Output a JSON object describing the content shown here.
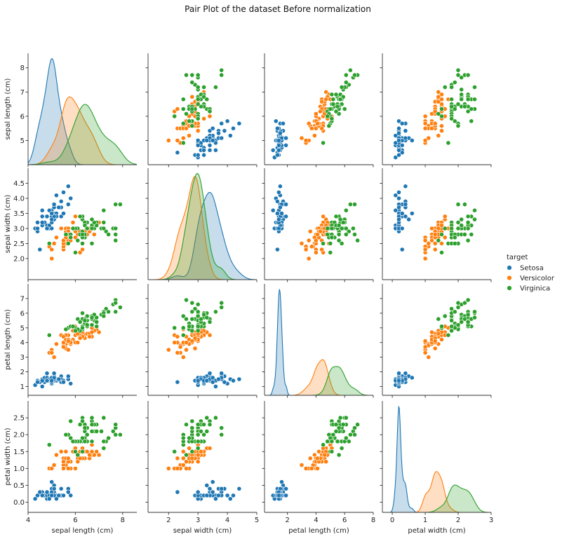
{
  "chart_data": {
    "type": "scatter",
    "title": "Pair Plot of the dataset Before normalization",
    "variables": [
      {
        "label": "sepal length (cm)",
        "range": [
          4.0,
          8.6
        ],
        "ticks": [
          4,
          6,
          8
        ],
        "yticks": [
          5,
          6,
          7,
          8
        ],
        "ytick_labels": [
          "5",
          "6",
          "7",
          "8"
        ]
      },
      {
        "label": "sepal width (cm)",
        "range": [
          1.3,
          5.0
        ],
        "ticks": [
          2,
          3,
          4,
          5
        ],
        "yticks": [
          2.0,
          2.5,
          3.0,
          3.5,
          4.0,
          4.5
        ],
        "ytick_labels": [
          "2.0",
          "2.5",
          "3.0",
          "3.5",
          "4.0",
          "4.5"
        ]
      },
      {
        "label": "petal length (cm)",
        "range": [
          0.4,
          8.0
        ],
        "ticks": [
          2,
          4,
          6,
          8
        ],
        "yticks": [
          1,
          2,
          3,
          4,
          5,
          6,
          7
        ],
        "ytick_labels": [
          "1",
          "2",
          "3",
          "4",
          "5",
          "6",
          "7"
        ]
      },
      {
        "label": "petal width (cm)",
        "range": [
          -0.3,
          3.0
        ],
        "ticks": [
          0,
          1,
          2,
          3
        ],
        "yticks": [
          0.0,
          0.5,
          1.0,
          1.5,
          2.0,
          2.5
        ],
        "ytick_labels": [
          "0.0",
          "0.5",
          "1.0",
          "1.5",
          "2.0",
          "2.5"
        ]
      }
    ],
    "legend": {
      "title": "target",
      "placement": "right"
    },
    "series": [
      {
        "name": "Setosa",
        "color": "#1f77b4",
        "points": [
          [
            5.1,
            3.5,
            1.4,
            0.2
          ],
          [
            4.9,
            3.0,
            1.4,
            0.2
          ],
          [
            4.7,
            3.2,
            1.3,
            0.2
          ],
          [
            4.6,
            3.1,
            1.5,
            0.2
          ],
          [
            5.0,
            3.6,
            1.4,
            0.2
          ],
          [
            5.4,
            3.9,
            1.7,
            0.4
          ],
          [
            4.6,
            3.4,
            1.4,
            0.3
          ],
          [
            5.0,
            3.4,
            1.5,
            0.2
          ],
          [
            4.4,
            2.9,
            1.4,
            0.2
          ],
          [
            4.9,
            3.1,
            1.5,
            0.1
          ],
          [
            5.4,
            3.7,
            1.5,
            0.2
          ],
          [
            4.8,
            3.4,
            1.6,
            0.2
          ],
          [
            4.8,
            3.0,
            1.4,
            0.1
          ],
          [
            4.3,
            3.0,
            1.1,
            0.1
          ],
          [
            5.8,
            4.0,
            1.2,
            0.2
          ],
          [
            5.7,
            4.4,
            1.5,
            0.4
          ],
          [
            5.4,
            3.9,
            1.3,
            0.4
          ],
          [
            5.1,
            3.5,
            1.4,
            0.3
          ],
          [
            5.7,
            3.8,
            1.7,
            0.3
          ],
          [
            5.1,
            3.8,
            1.5,
            0.3
          ],
          [
            5.4,
            3.4,
            1.7,
            0.2
          ],
          [
            5.1,
            3.7,
            1.5,
            0.4
          ],
          [
            4.6,
            3.6,
            1.0,
            0.2
          ],
          [
            5.1,
            3.3,
            1.7,
            0.5
          ],
          [
            4.8,
            3.4,
            1.9,
            0.2
          ],
          [
            5.0,
            3.0,
            1.6,
            0.2
          ],
          [
            5.0,
            3.4,
            1.6,
            0.4
          ],
          [
            5.2,
            3.5,
            1.5,
            0.2
          ],
          [
            5.2,
            3.4,
            1.4,
            0.2
          ],
          [
            4.7,
            3.2,
            1.6,
            0.2
          ],
          [
            4.8,
            3.1,
            1.6,
            0.2
          ],
          [
            5.4,
            3.4,
            1.5,
            0.4
          ],
          [
            5.2,
            4.1,
            1.5,
            0.1
          ],
          [
            5.5,
            4.2,
            1.4,
            0.2
          ],
          [
            4.9,
            3.1,
            1.5,
            0.2
          ],
          [
            5.0,
            3.2,
            1.2,
            0.2
          ],
          [
            5.5,
            3.5,
            1.3,
            0.2
          ],
          [
            4.9,
            3.6,
            1.4,
            0.1
          ],
          [
            4.4,
            3.0,
            1.3,
            0.2
          ],
          [
            5.1,
            3.4,
            1.5,
            0.2
          ],
          [
            5.0,
            3.5,
            1.3,
            0.3
          ],
          [
            4.5,
            2.3,
            1.3,
            0.3
          ],
          [
            4.4,
            3.2,
            1.3,
            0.2
          ],
          [
            5.0,
            3.5,
            1.6,
            0.6
          ],
          [
            5.1,
            3.8,
            1.9,
            0.4
          ],
          [
            4.8,
            3.0,
            1.4,
            0.3
          ],
          [
            5.1,
            3.8,
            1.6,
            0.2
          ],
          [
            4.6,
            3.2,
            1.4,
            0.2
          ],
          [
            5.3,
            3.7,
            1.5,
            0.2
          ],
          [
            5.0,
            3.3,
            1.4,
            0.2
          ]
        ]
      },
      {
        "name": "Versicolor",
        "color": "#ff7f0e",
        "points": [
          [
            7.0,
            3.2,
            4.7,
            1.4
          ],
          [
            6.4,
            3.2,
            4.5,
            1.5
          ],
          [
            6.9,
            3.1,
            4.9,
            1.5
          ],
          [
            5.5,
            2.3,
            4.0,
            1.3
          ],
          [
            6.5,
            2.8,
            4.6,
            1.5
          ],
          [
            5.7,
            2.8,
            4.5,
            1.3
          ],
          [
            6.3,
            3.3,
            4.7,
            1.6
          ],
          [
            4.9,
            2.4,
            3.3,
            1.0
          ],
          [
            6.6,
            2.9,
            4.6,
            1.3
          ],
          [
            5.2,
            2.7,
            3.9,
            1.4
          ],
          [
            5.0,
            2.0,
            3.5,
            1.0
          ],
          [
            5.9,
            3.0,
            4.2,
            1.5
          ],
          [
            6.0,
            2.2,
            4.0,
            1.0
          ],
          [
            6.1,
            2.9,
            4.7,
            1.4
          ],
          [
            5.6,
            2.9,
            3.6,
            1.3
          ],
          [
            6.7,
            3.1,
            4.4,
            1.4
          ],
          [
            5.6,
            3.0,
            4.5,
            1.5
          ],
          [
            5.8,
            2.7,
            4.1,
            1.0
          ],
          [
            6.2,
            2.2,
            4.5,
            1.5
          ],
          [
            5.6,
            2.5,
            3.9,
            1.1
          ],
          [
            5.9,
            3.2,
            4.8,
            1.8
          ],
          [
            6.1,
            2.8,
            4.0,
            1.3
          ],
          [
            6.3,
            2.5,
            4.9,
            1.5
          ],
          [
            6.1,
            2.8,
            4.7,
            1.2
          ],
          [
            6.4,
            2.9,
            4.3,
            1.3
          ],
          [
            6.6,
            3.0,
            4.4,
            1.4
          ],
          [
            6.8,
            2.8,
            4.8,
            1.4
          ],
          [
            6.7,
            3.0,
            5.0,
            1.7
          ],
          [
            6.0,
            2.9,
            4.5,
            1.5
          ],
          [
            5.7,
            2.6,
            3.5,
            1.0
          ],
          [
            5.5,
            2.4,
            3.8,
            1.1
          ],
          [
            5.5,
            2.4,
            3.7,
            1.0
          ],
          [
            5.8,
            2.7,
            3.9,
            1.2
          ],
          [
            6.0,
            2.7,
            5.1,
            1.6
          ],
          [
            5.4,
            3.0,
            4.5,
            1.5
          ],
          [
            6.0,
            3.4,
            4.5,
            1.6
          ],
          [
            6.7,
            3.1,
            4.7,
            1.5
          ],
          [
            6.3,
            2.3,
            4.4,
            1.3
          ],
          [
            5.6,
            3.0,
            4.1,
            1.3
          ],
          [
            5.5,
            2.5,
            4.0,
            1.3
          ],
          [
            5.5,
            2.6,
            4.4,
            1.2
          ],
          [
            6.1,
            3.0,
            4.6,
            1.4
          ],
          [
            5.8,
            2.6,
            4.0,
            1.2
          ],
          [
            5.0,
            2.3,
            3.3,
            1.0
          ],
          [
            5.6,
            2.7,
            4.2,
            1.3
          ],
          [
            5.7,
            3.0,
            4.2,
            1.2
          ],
          [
            5.7,
            2.9,
            4.2,
            1.3
          ],
          [
            6.2,
            2.9,
            4.3,
            1.3
          ],
          [
            5.1,
            2.5,
            3.0,
            1.1
          ],
          [
            5.7,
            2.8,
            4.1,
            1.3
          ]
        ]
      },
      {
        "name": "Virginica",
        "color": "#2ca02c",
        "points": [
          [
            6.3,
            3.3,
            6.0,
            2.5
          ],
          [
            5.8,
            2.7,
            5.1,
            1.9
          ],
          [
            7.1,
            3.0,
            5.9,
            2.1
          ],
          [
            6.3,
            2.9,
            5.6,
            1.8
          ],
          [
            6.5,
            3.0,
            5.8,
            2.2
          ],
          [
            7.6,
            3.0,
            6.6,
            2.1
          ],
          [
            4.9,
            2.5,
            4.5,
            1.7
          ],
          [
            7.3,
            2.9,
            6.3,
            1.8
          ],
          [
            6.7,
            2.5,
            5.8,
            1.8
          ],
          [
            7.2,
            3.6,
            6.1,
            2.5
          ],
          [
            6.5,
            3.2,
            5.1,
            2.0
          ],
          [
            6.4,
            2.7,
            5.3,
            1.9
          ],
          [
            6.8,
            3.0,
            5.5,
            2.1
          ],
          [
            5.7,
            2.5,
            5.0,
            2.0
          ],
          [
            5.8,
            2.8,
            5.1,
            2.4
          ],
          [
            6.4,
            3.2,
            5.3,
            2.3
          ],
          [
            6.5,
            3.0,
            5.5,
            1.8
          ],
          [
            7.7,
            3.8,
            6.7,
            2.2
          ],
          [
            7.7,
            2.6,
            6.9,
            2.3
          ],
          [
            6.0,
            2.2,
            5.0,
            1.5
          ],
          [
            6.9,
            3.2,
            5.7,
            2.3
          ],
          [
            5.6,
            2.8,
            4.9,
            2.0
          ],
          [
            7.7,
            2.8,
            6.7,
            2.0
          ],
          [
            6.3,
            2.7,
            4.9,
            1.8
          ],
          [
            6.7,
            3.3,
            5.7,
            2.1
          ],
          [
            7.2,
            3.2,
            6.0,
            1.8
          ],
          [
            6.2,
            2.8,
            4.8,
            1.8
          ],
          [
            6.1,
            3.0,
            4.9,
            1.8
          ],
          [
            6.4,
            2.8,
            5.6,
            2.1
          ],
          [
            7.2,
            3.0,
            5.8,
            1.6
          ],
          [
            7.4,
            2.8,
            6.1,
            1.9
          ],
          [
            7.9,
            3.8,
            6.4,
            2.0
          ],
          [
            6.4,
            2.8,
            5.6,
            2.2
          ],
          [
            6.3,
            2.8,
            5.1,
            1.5
          ],
          [
            6.1,
            2.6,
            5.6,
            1.4
          ],
          [
            7.7,
            3.0,
            6.1,
            2.3
          ],
          [
            6.3,
            3.4,
            5.6,
            2.4
          ],
          [
            6.4,
            3.1,
            5.5,
            1.8
          ],
          [
            6.0,
            3.0,
            4.8,
            1.8
          ],
          [
            6.9,
            3.1,
            5.4,
            2.1
          ],
          [
            6.7,
            3.1,
            5.6,
            2.4
          ],
          [
            6.9,
            3.1,
            5.1,
            2.3
          ],
          [
            5.8,
            2.7,
            5.1,
            1.9
          ],
          [
            6.8,
            3.2,
            5.9,
            2.3
          ],
          [
            6.7,
            3.3,
            5.7,
            2.5
          ],
          [
            6.7,
            3.0,
            5.2,
            2.3
          ],
          [
            6.3,
            2.5,
            5.0,
            1.9
          ],
          [
            6.5,
            3.0,
            5.2,
            2.0
          ],
          [
            6.2,
            3.4,
            5.4,
            2.3
          ],
          [
            5.9,
            3.0,
            5.1,
            1.8
          ]
        ]
      }
    ]
  }
}
